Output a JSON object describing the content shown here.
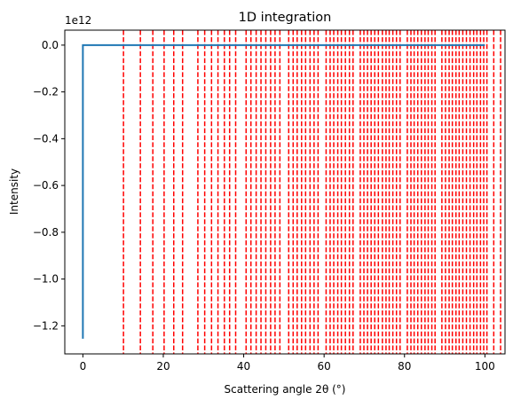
{
  "chart_data": {
    "type": "line",
    "title": "1D integration",
    "xlabel": "Scattering angle 2θ (°)",
    "ylabel": "Intensity",
    "y_offset_label": "1e12",
    "xlim": [
      -4.5,
      105
    ],
    "ylim": [
      -1.32,
      0.064
    ],
    "x_ticks": [
      0,
      20,
      40,
      60,
      80,
      100
    ],
    "x_tick_labels": [
      "0",
      "20",
      "40",
      "60",
      "80",
      "100"
    ],
    "y_ticks": [
      0.0,
      -0.2,
      -0.4,
      -0.6,
      -0.8,
      -1.0,
      -1.2
    ],
    "y_tick_labels": [
      "0.0",
      "−0.2",
      "−0.4",
      "−0.6",
      "−0.8",
      "−1.0",
      "−1.2"
    ],
    "grid": false,
    "series": [
      {
        "color": "#1f77b4",
        "x": [
          0.0,
          0.0,
          0.3,
          100.0
        ],
        "y": [
          -1.255,
          0.0,
          0.0,
          0.0
        ]
      }
    ],
    "reference_lines": {
      "orientation": "vertical",
      "style": "dashed",
      "color": "#ff0000",
      "x": [
        10.1,
        14.3,
        17.4,
        20.2,
        22.6,
        24.8,
        28.6,
        30.3,
        32.0,
        33.6,
        35.2,
        36.5,
        38.0,
        40.6,
        41.8,
        43.1,
        44.3,
        45.5,
        46.7,
        47.8,
        49.0,
        51.2,
        52.3,
        53.3,
        54.4,
        55.4,
        56.5,
        57.5,
        58.5,
        60.5,
        61.5,
        62.4,
        63.4,
        64.3,
        65.3,
        66.3,
        67.2,
        69.0,
        69.9,
        70.8,
        71.7,
        72.6,
        73.5,
        74.5,
        75.4,
        76.2,
        77.1,
        78.0,
        78.9,
        80.7,
        81.6,
        82.4,
        83.3,
        84.2,
        85.1,
        85.9,
        86.8,
        87.6,
        89.3,
        90.2,
        91.1,
        91.9,
        92.8,
        93.6,
        94.5,
        95.4,
        96.3,
        97.2,
        98.0,
        98.9,
        99.7,
        100.5,
        102.2,
        103.9
      ]
    }
  }
}
